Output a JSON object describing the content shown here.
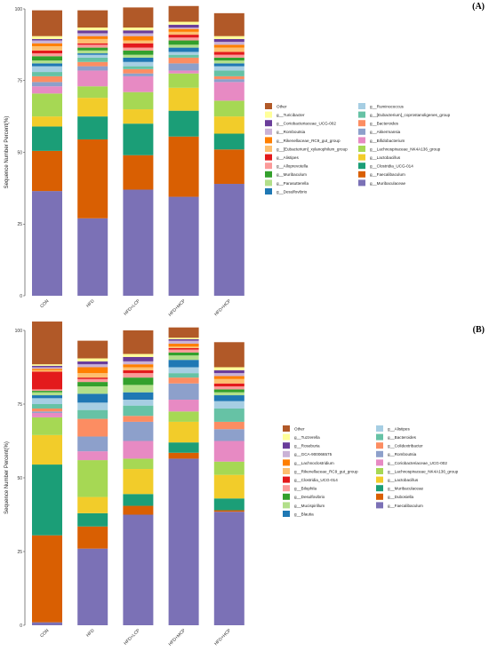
{
  "chart_data": [
    {
      "type": "bar",
      "stacked": true,
      "panel_label": "(A)",
      "ylabel": "Sequence Number Percent(%)",
      "ylim": [
        0,
        100
      ],
      "yticks": [
        "0",
        "25",
        "50",
        "75",
        "100"
      ],
      "categories": [
        "CON",
        "HFD",
        "HFD+LCP",
        "HFD+MCP",
        "HFD+HCP"
      ],
      "series": [
        {
          "name": "g__Muribaculaceae",
          "color": "#7b71b6",
          "values": [
            36.5,
            27,
            37,
            34.5,
            39
          ]
        },
        {
          "name": "g__Faecalibaculum",
          "color": "#d95f02",
          "values": [
            14,
            27.5,
            12,
            21,
            12
          ]
        },
        {
          "name": "g__Clostridia_UCG-014",
          "color": "#1b9e77",
          "values": [
            8.5,
            8,
            11,
            9,
            5.5
          ]
        },
        {
          "name": "g__Lactobacillus",
          "color": "#f2cc2a",
          "values": [
            3.5,
            6.5,
            5,
            8,
            6
          ]
        },
        {
          "name": "g__Lachnospiraceae_NK4A136_group",
          "color": "#a6d854",
          "values": [
            8,
            4,
            6,
            5,
            5.5
          ]
        },
        {
          "name": "g__Bifidobacterium",
          "color": "#e78ac3",
          "values": [
            2.5,
            5.5,
            5.5,
            1,
            6.5
          ]
        },
        {
          "name": "g__Akkermansia",
          "color": "#8da0cb",
          "values": [
            1.5,
            1.5,
            1,
            2.5,
            1
          ]
        },
        {
          "name": "g__Bacteroides",
          "color": "#fc8d62",
          "values": [
            2,
            1.5,
            1.5,
            2,
            1
          ]
        },
        {
          "name": "g__[Eubacterium]_coprostanoligenes_group",
          "color": "#66c2a5",
          "values": [
            1.5,
            1.5,
            1,
            1,
            2
          ]
        },
        {
          "name": "g__Ruminococcus",
          "color": "#a6cee3",
          "values": [
            2,
            1,
            1.5,
            1,
            1.5
          ]
        },
        {
          "name": "g__Desulfovibrio",
          "color": "#1f78b4",
          "values": [
            1,
            0.5,
            1.5,
            1.5,
            1
          ]
        },
        {
          "name": "g__Parasutterella",
          "color": "#b2df8a",
          "values": [
            1,
            1,
            1,
            1,
            1
          ]
        },
        {
          "name": "g__Muribaculum",
          "color": "#33a02c",
          "values": [
            1.5,
            1,
            1.5,
            1.5,
            1
          ]
        },
        {
          "name": "g__Alloprevotella",
          "color": "#fb9a99",
          "values": [
            1,
            1,
            1,
            1,
            1
          ]
        },
        {
          "name": "g__Alistipes",
          "color": "#e31a1c",
          "values": [
            1,
            0.5,
            1.5,
            1,
            1
          ]
        },
        {
          "name": "g__[Eubacterium]_xylanophilum_group",
          "color": "#fdbf6f",
          "values": [
            1.5,
            1.5,
            1,
            1,
            1.5
          ]
        },
        {
          "name": "g__Rikenellaceae_RC9_gut_group",
          "color": "#ff7f00",
          "values": [
            1,
            1,
            1.5,
            1,
            1
          ]
        },
        {
          "name": "g__Romboutsia",
          "color": "#cab2d6",
          "values": [
            1,
            1,
            1,
            0.5,
            1
          ]
        },
        {
          "name": "g__Coriobacteriaceae_UCG-002",
          "color": "#6a3d9a",
          "values": [
            0.5,
            1,
            1,
            1,
            1
          ]
        },
        {
          "name": "g__Turicibacter",
          "color": "#ffff99",
          "values": [
            1,
            1,
            1,
            1,
            1
          ]
        },
        {
          "name": "Other",
          "color": "#b15928",
          "values": [
            9,
            6,
            7,
            5.5,
            8
          ]
        }
      ]
    },
    {
      "type": "bar",
      "stacked": true,
      "panel_label": "(B)",
      "ylabel": "Sequence Number Percent(%)",
      "ylim": [
        0,
        100
      ],
      "yticks": [
        "0",
        "25",
        "50",
        "75",
        "100"
      ],
      "categories": [
        "CON",
        "HFD",
        "HFD+LCP",
        "HFD+MCP",
        "HFD+HCP"
      ],
      "series": [
        {
          "name": "g__Faecalibaculum",
          "color": "#7b71b6",
          "values": [
            1,
            26,
            37.5,
            56.5,
            38.5
          ]
        },
        {
          "name": "g__Dubosiella",
          "color": "#d95f02",
          "values": [
            29.5,
            7.5,
            3,
            2,
            0.5
          ]
        },
        {
          "name": "g__Muribaculaceae",
          "color": "#1b9e77",
          "values": [
            24,
            4.5,
            4,
            3.5,
            4
          ]
        },
        {
          "name": "g__Lactobacillus",
          "color": "#f2cc2a",
          "values": [
            10,
            5.5,
            8.5,
            7,
            8
          ]
        },
        {
          "name": "g__Lachnospiraceae_NK4A136_group",
          "color": "#a6d854",
          "values": [
            6,
            12.5,
            3.5,
            3.5,
            4.5
          ]
        },
        {
          "name": "g__Coriobacteriaceae_UCG-002",
          "color": "#e78ac3",
          "values": [
            1.5,
            3,
            6,
            4,
            7
          ]
        },
        {
          "name": "g__Romboutsia",
          "color": "#8da0cb",
          "values": [
            0.5,
            5,
            6.5,
            5.5,
            4
          ]
        },
        {
          "name": "g__Colidextribacter",
          "color": "#fc8d62",
          "values": [
            1,
            6,
            2,
            2,
            2.5
          ]
        },
        {
          "name": "g__Bacteroides",
          "color": "#66c2a5",
          "values": [
            1.5,
            3,
            3.5,
            1.5,
            4.5
          ]
        },
        {
          "name": "g__Alistipes",
          "color": "#a6cee3",
          "values": [
            2,
            2.5,
            2,
            2,
            2.5
          ]
        },
        {
          "name": "g__Blautia",
          "color": "#1f78b4",
          "values": [
            1,
            3,
            2.5,
            2.5,
            2
          ]
        },
        {
          "name": "g__Mucispirillum",
          "color": "#b2df8a",
          "values": [
            1,
            2.5,
            2.5,
            1.5,
            1
          ]
        },
        {
          "name": "g__Desulfovibrio",
          "color": "#33a02c",
          "values": [
            0.5,
            1.5,
            2.5,
            1,
            1
          ]
        },
        {
          "name": "g__Bilophila",
          "color": "#fb9a99",
          "values": [
            0.5,
            1,
            1.5,
            1,
            1
          ]
        },
        {
          "name": "g__Clostridia_UCG-014",
          "color": "#e31a1c",
          "values": [
            6,
            0.5,
            1,
            0.5,
            1
          ]
        },
        {
          "name": "g__Rikenellaceae_RC9_gut_group",
          "color": "#fdbf6f",
          "values": [
            0.5,
            1.5,
            1,
            0.5,
            1.5
          ]
        },
        {
          "name": "g__Lachnoclostridium",
          "color": "#ff7f00",
          "values": [
            0.5,
            2,
            1,
            1,
            1
          ]
        },
        {
          "name": "g__GCA-900066575",
          "color": "#cab2d6",
          "values": [
            0.5,
            1,
            1,
            1,
            1
          ]
        },
        {
          "name": "g__Roseburia",
          "color": "#6a3d9a",
          "values": [
            0.5,
            1,
            1.5,
            0.5,
            1
          ]
        },
        {
          "name": "g__Tuzzerella",
          "color": "#ffff99",
          "values": [
            0.5,
            1,
            1,
            0.5,
            1
          ]
        },
        {
          "name": "Other",
          "color": "#b15928",
          "values": [
            14.5,
            6,
            8,
            3.5,
            8.5
          ]
        }
      ]
    }
  ]
}
